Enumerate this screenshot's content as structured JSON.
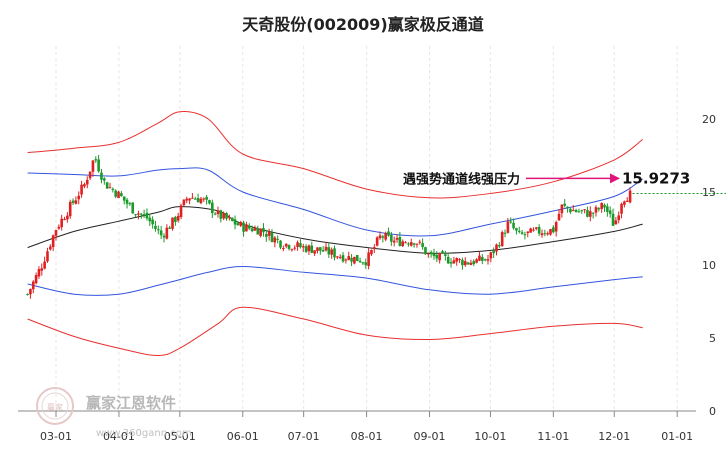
{
  "watermark": {
    "brand": "赢家江恩软件",
    "url": "www.360gann.com",
    "seal": "赢家"
  },
  "colors": {
    "up": "#e02020",
    "down": "#1a9a2a",
    "outer_band": "#e83030",
    "mid_band": "#3355dd",
    "center_line": "#222222",
    "arrow": "#e0157a",
    "price_line": "#1a9a2a"
  },
  "chart_data": {
    "type": "candlestick",
    "title": "天奇股份(002009)赢家极反通道",
    "ylim": [
      0,
      21
    ],
    "y_ticks": [
      0,
      5,
      10,
      15,
      20
    ],
    "grid": "vertical",
    "x_ticks": [
      "03-01",
      "04-01",
      "05-01",
      "06-01",
      "07-01",
      "08-01",
      "09-01",
      "10-01",
      "11-01",
      "12-01",
      "01-01"
    ],
    "annotation": {
      "text": "遇强势通道线强压力",
      "value": "15.9273",
      "price": 15.93
    },
    "last_price": 14.9,
    "series": [
      {
        "name": "upper_outer",
        "role": "outer",
        "points": [
          [
            "02-15",
            17.7
          ],
          [
            "03-10",
            18.0
          ],
          [
            "04-01",
            18.4
          ],
          [
            "04-20",
            19.7
          ],
          [
            "05-01",
            20.5
          ],
          [
            "05-15",
            20.0
          ],
          [
            "06-01",
            17.6
          ],
          [
            "07-01",
            16.6
          ],
          [
            "08-01",
            15.2
          ],
          [
            "09-01",
            14.6
          ],
          [
            "10-01",
            14.9
          ],
          [
            "11-01",
            15.7
          ],
          [
            "12-01",
            17.2
          ],
          [
            "12-15",
            18.6
          ]
        ]
      },
      {
        "name": "upper_mid",
        "role": "mid",
        "points": [
          [
            "02-15",
            16.3
          ],
          [
            "03-10",
            16.2
          ],
          [
            "04-01",
            16.1
          ],
          [
            "04-20",
            16.5
          ],
          [
            "05-01",
            16.6
          ],
          [
            "05-15",
            16.5
          ],
          [
            "06-01",
            15.0
          ],
          [
            "07-01",
            13.8
          ],
          [
            "08-01",
            12.4
          ],
          [
            "09-01",
            12.0
          ],
          [
            "10-01",
            12.8
          ],
          [
            "11-01",
            13.7
          ],
          [
            "12-01",
            14.7
          ],
          [
            "12-15",
            15.9
          ]
        ]
      },
      {
        "name": "center",
        "role": "center",
        "points": [
          [
            "02-15",
            11.2
          ],
          [
            "03-10",
            12.3
          ],
          [
            "04-01",
            13.0
          ],
          [
            "04-20",
            13.6
          ],
          [
            "05-01",
            14.0
          ],
          [
            "05-20",
            13.7
          ],
          [
            "06-01",
            12.8
          ],
          [
            "07-01",
            11.8
          ],
          [
            "08-01",
            11.2
          ],
          [
            "09-01",
            10.8
          ],
          [
            "10-01",
            11.0
          ],
          [
            "11-01",
            11.6
          ],
          [
            "12-01",
            12.3
          ],
          [
            "12-15",
            12.8
          ]
        ]
      },
      {
        "name": "lower_mid",
        "role": "mid",
        "points": [
          [
            "02-15",
            8.7
          ],
          [
            "03-10",
            8.0
          ],
          [
            "04-01",
            8.0
          ],
          [
            "04-20",
            8.6
          ],
          [
            "05-01",
            9.0
          ],
          [
            "05-15",
            9.5
          ],
          [
            "06-01",
            9.9
          ],
          [
            "07-01",
            9.5
          ],
          [
            "08-01",
            9.1
          ],
          [
            "09-01",
            8.3
          ],
          [
            "10-01",
            8.0
          ],
          [
            "11-01",
            8.5
          ],
          [
            "12-01",
            9.0
          ],
          [
            "12-15",
            9.2
          ]
        ]
      },
      {
        "name": "lower_outer",
        "role": "outer",
        "points": [
          [
            "02-15",
            6.3
          ],
          [
            "03-10",
            5.1
          ],
          [
            "04-01",
            4.3
          ],
          [
            "04-20",
            3.8
          ],
          [
            "05-01",
            4.3
          ],
          [
            "05-20",
            6.0
          ],
          [
            "06-01",
            7.1
          ],
          [
            "07-01",
            6.3
          ],
          [
            "08-01",
            5.2
          ],
          [
            "09-01",
            4.9
          ],
          [
            "10-01",
            5.3
          ],
          [
            "11-01",
            5.8
          ],
          [
            "12-01",
            6.0
          ],
          [
            "12-15",
            5.7
          ]
        ]
      }
    ],
    "price_path": [
      [
        "02-15",
        8.0
      ],
      [
        "02-22",
        10.0
      ],
      [
        "03-01",
        12.5
      ],
      [
        "03-08",
        14.0
      ],
      [
        "03-15",
        15.5
      ],
      [
        "03-20",
        17.4
      ],
      [
        "03-25",
        15.6
      ],
      [
        "04-01",
        14.8
      ],
      [
        "04-08",
        13.8
      ],
      [
        "04-15",
        13.2
      ],
      [
        "04-22",
        12.0
      ],
      [
        "04-29",
        13.2
      ],
      [
        "05-05",
        14.7
      ],
      [
        "05-12",
        14.5
      ],
      [
        "05-20",
        13.4
      ],
      [
        "06-01",
        12.6
      ],
      [
        "06-10",
        12.4
      ],
      [
        "06-20",
        11.5
      ],
      [
        "07-01",
        11.2
      ],
      [
        "07-10",
        11.0
      ],
      [
        "07-20",
        10.6
      ],
      [
        "08-01",
        10.3
      ],
      [
        "08-08",
        12.0
      ],
      [
        "08-15",
        11.6
      ],
      [
        "08-25",
        11.7
      ],
      [
        "09-01",
        10.6
      ],
      [
        "09-10",
        10.4
      ],
      [
        "09-20",
        10.2
      ],
      [
        "09-30",
        10.4
      ],
      [
        "10-05",
        11.5
      ],
      [
        "10-10",
        12.9
      ],
      [
        "10-15",
        12.0
      ],
      [
        "10-25",
        12.3
      ],
      [
        "11-01",
        12.4
      ],
      [
        "11-05",
        14.0
      ],
      [
        "11-12",
        13.7
      ],
      [
        "11-20",
        13.5
      ],
      [
        "11-26",
        14.1
      ],
      [
        "12-01",
        12.7
      ],
      [
        "12-05",
        14.6
      ],
      [
        "12-10",
        14.9
      ]
    ]
  }
}
